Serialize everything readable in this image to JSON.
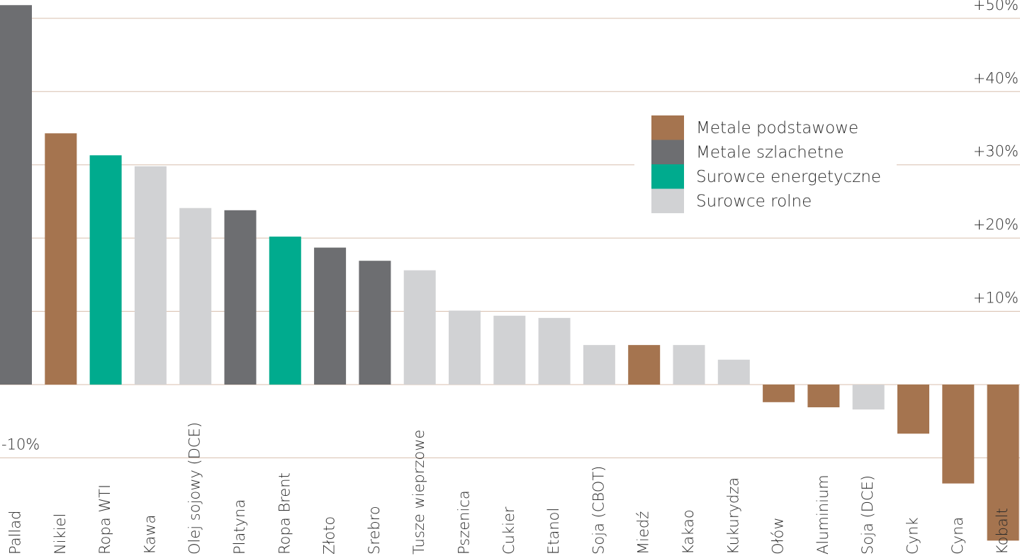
{
  "chart_data": {
    "type": "bar",
    "categories": [
      "Pallad",
      "Nikiel",
      "Ropa WTI",
      "Kawa",
      "Olej sojowy (DCE)",
      "Platyna",
      "Ropa Brent",
      "Złoto",
      "Srebro",
      "Tusze wieprzowe",
      "Pszenica",
      "Cukier",
      "Etanol",
      "Soja (CBOT)",
      "Miedź",
      "Kakao",
      "Kukurydza",
      "Ołów",
      "Aluminium",
      "Soja (DCE)",
      "Cynk",
      "Cyna",
      "Kobalt"
    ],
    "series": [
      {
        "name": "Metale podstawowe",
        "color": "#a5744f",
        "values": [
          null,
          34.3,
          null,
          null,
          null,
          null,
          null,
          null,
          null,
          null,
          null,
          null,
          null,
          null,
          5.4,
          null,
          null,
          -2.4,
          -3.1,
          null,
          -6.7,
          -13.5,
          -21.3
        ]
      },
      {
        "name": "Metale szlachetne",
        "color": "#6d6e71",
        "values": [
          51.8,
          null,
          null,
          null,
          null,
          23.8,
          null,
          18.7,
          16.9,
          null,
          null,
          null,
          null,
          null,
          null,
          null,
          null,
          null,
          null,
          null,
          null,
          null,
          null
        ]
      },
      {
        "name": "Surowce energetyczne",
        "color": "#00ab8e",
        "values": [
          null,
          null,
          31.3,
          null,
          null,
          null,
          20.2,
          null,
          null,
          null,
          null,
          null,
          null,
          null,
          null,
          null,
          null,
          null,
          null,
          null,
          null,
          null,
          null
        ]
      },
      {
        "name": "Surowce rolne",
        "color": "#d1d2d4",
        "values": [
          null,
          null,
          null,
          29.8,
          24.1,
          null,
          null,
          null,
          null,
          15.6,
          10.1,
          9.4,
          9.1,
          5.4,
          null,
          5.4,
          3.4,
          null,
          null,
          -3.4,
          null,
          null,
          null
        ]
      }
    ],
    "ylim": [
      -23.4,
      52.5
    ],
    "yticks": [
      {
        "value": 50,
        "label": "+50%"
      },
      {
        "value": 40,
        "label": "+40%"
      },
      {
        "value": 30,
        "label": "+30%"
      },
      {
        "value": 20,
        "label": "+20%"
      },
      {
        "value": 10,
        "label": "+10%"
      },
      {
        "value": -10,
        "label": "-10%"
      }
    ],
    "grid": true
  }
}
